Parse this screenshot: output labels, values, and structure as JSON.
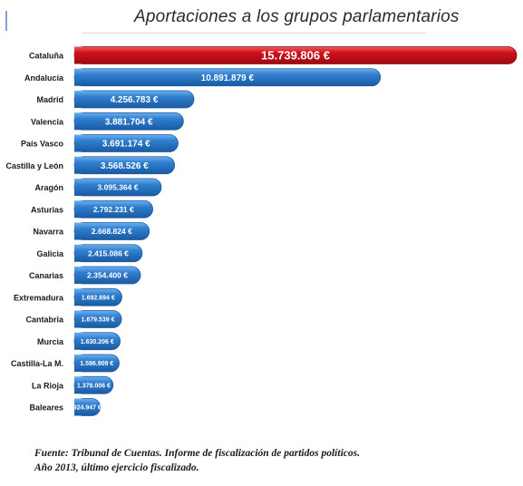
{
  "title": "Aportaciones a los grupos parlamentarios",
  "source_line1": "Fuente: Tribunal de Cuentas. Informe de fiscalización de partidos políticos.",
  "source_line2": "Año 2013, último ejercicio fiscalizado.",
  "colors": {
    "highlight": "#c8101b",
    "bar": "#2f7fcf",
    "bar_edge": "#1f5a9e"
  },
  "chart_data": {
    "type": "bar",
    "orientation": "horizontal",
    "categories": [
      "Cataluña",
      "Andalucía",
      "Madrid",
      "Valencia",
      "País Vasco",
      "Castilla y León",
      "Aragón",
      "Asturias",
      "Navarra",
      "Galicia",
      "Canarias",
      "Extremadura",
      "Cantabria",
      "Murcia",
      "Castilla-La M.",
      "La Rioja",
      "Baleares"
    ],
    "values": [
      15739806,
      10891879,
      4256783,
      3881704,
      3691174,
      3568526,
      3095364,
      2792231,
      2668824,
      2415086,
      2354400,
      1692694,
      1679539,
      1630206,
      1596909,
      1378006,
      924947
    ],
    "value_labels": [
      "15.739.806 €",
      "10.891.879 €",
      "4.256.783 €",
      "3.881.704 €",
      "3.691.174 €",
      "3.568.526 €",
      "3.095.364 €",
      "2.792.231 €",
      "2.668.824 €",
      "2.415.086 €",
      "2.354.400 €",
      "1.692.694 €",
      "1.679.539 €",
      "1.630.206 €",
      "1.596.909 €",
      "1.378.006 €",
      "924.947 €"
    ],
    "highlight_index": 0,
    "xlim": [
      0,
      15739806
    ],
    "grid": false
  }
}
